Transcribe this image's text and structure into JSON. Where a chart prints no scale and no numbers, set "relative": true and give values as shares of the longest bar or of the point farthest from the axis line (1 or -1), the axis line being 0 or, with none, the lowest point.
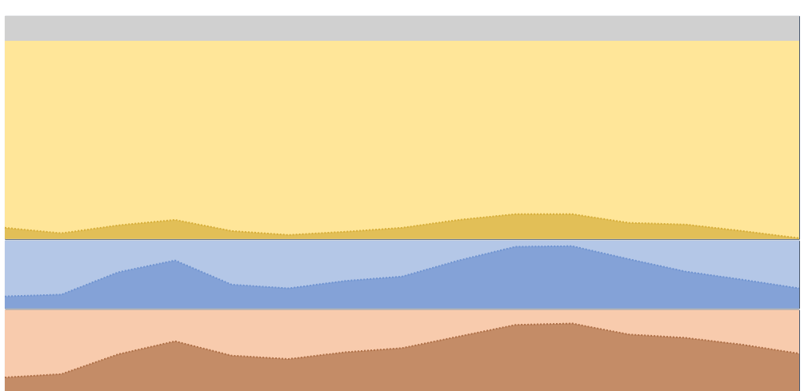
{
  "chart_data": [
    {
      "type": "area",
      "relative": true,
      "categories": [
        null,
        null,
        null,
        null,
        null,
        null,
        null,
        null,
        null,
        null,
        null,
        null,
        null,
        null,
        null
      ],
      "series": [
        {
          "color": "#d6ae3a",
          "values": [
            0.45,
            0.23,
            0.55,
            0.77,
            0.32,
            0.16,
            0.29,
            0.45,
            0.77,
            1,
            1,
            0.65,
            0.58,
            0.32,
            0.03
          ]
        }
      ],
      "bands": [
        {
          "axis": "y",
          "from": 0,
          "to": 8,
          "color": "#ffe699"
        },
        {
          "axis": "y",
          "from": 8,
          "to": 9,
          "color": "#d0d0d0"
        }
      ]
    },
    {
      "type": "area",
      "relative": true,
      "categories": [
        null,
        null,
        null,
        null,
        null,
        null,
        null,
        null,
        null,
        null,
        null,
        null,
        null,
        null,
        null
      ],
      "series": [
        {
          "color": "#6f93d0",
          "values": [
            0.19,
            0.22,
            0.58,
            0.77,
            0.38,
            0.32,
            0.44,
            0.51,
            0.77,
            0.99,
            1,
            0.79,
            0.59,
            0.46,
            0.32
          ]
        }
      ],
      "bands": [
        {
          "axis": "y",
          "from": 0,
          "to": 1.09,
          "color": "#b4c7e7"
        }
      ]
    },
    {
      "type": "area",
      "relative": true,
      "categories": [
        null,
        null,
        null,
        null,
        null,
        null,
        null,
        null,
        null,
        null,
        null,
        null,
        null,
        null,
        null
      ],
      "series": [
        {
          "color": "#ae7048",
          "values": [
            0.21,
            0.26,
            0.55,
            0.74,
            0.53,
            0.48,
            0.58,
            0.64,
            0.81,
            0.98,
            1,
            0.84,
            0.79,
            0.69,
            0.56
          ]
        }
      ],
      "bands": [
        {
          "axis": "y",
          "from": 0,
          "to": 1.2,
          "color": "#f8cbad"
        }
      ]
    }
  ]
}
